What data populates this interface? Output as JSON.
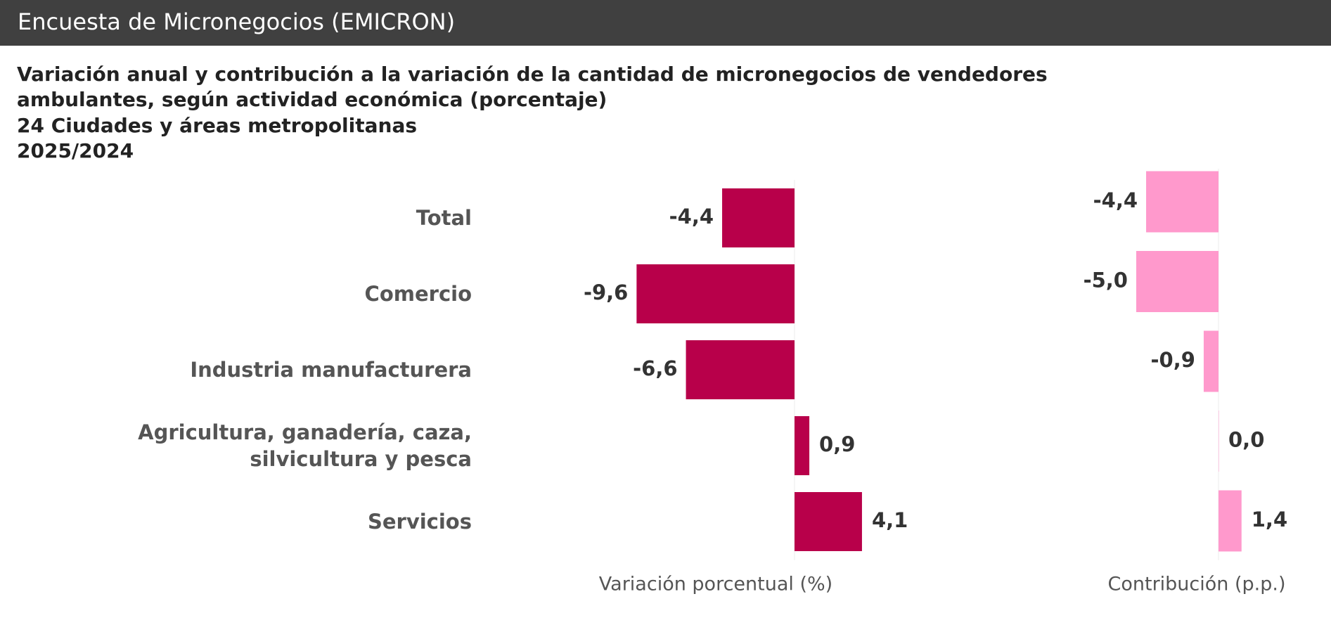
{
  "header": {
    "title": "Encuesta de Micronegocios (EMICRON)"
  },
  "chart_data": {
    "type": "bar",
    "orientation": "horizontal",
    "title": "Variación anual y contribución a la variación de la cantidad de micronegocios de vendedores ambulantes, según actividad económica (porcentaje)",
    "subtitle": [
      "24 Ciudades y áreas metropolitanas",
      "2025/2024"
    ],
    "categories": [
      "Total",
      "Comercio",
      "Industria manufacturera",
      "Agricultura, ganadería, caza, silvicultura y pesca",
      "Servicios"
    ],
    "series": [
      {
        "name": "Variación porcentual (%)",
        "color": "#b8004a",
        "values": [
          -4.4,
          -9.6,
          -6.6,
          0.9,
          4.1
        ],
        "value_labels": [
          "-4,4",
          "-9,6",
          "-6,6",
          "0,9",
          "4,1"
        ]
      },
      {
        "name": "Contribución (p.p.)",
        "color": "#ff99cc",
        "values": [
          -4.4,
          -5.0,
          -0.9,
          0.0,
          1.4
        ],
        "value_labels": [
          "-4,4",
          "-5,0",
          "-0,9",
          "0,0",
          "1,4"
        ]
      }
    ]
  }
}
